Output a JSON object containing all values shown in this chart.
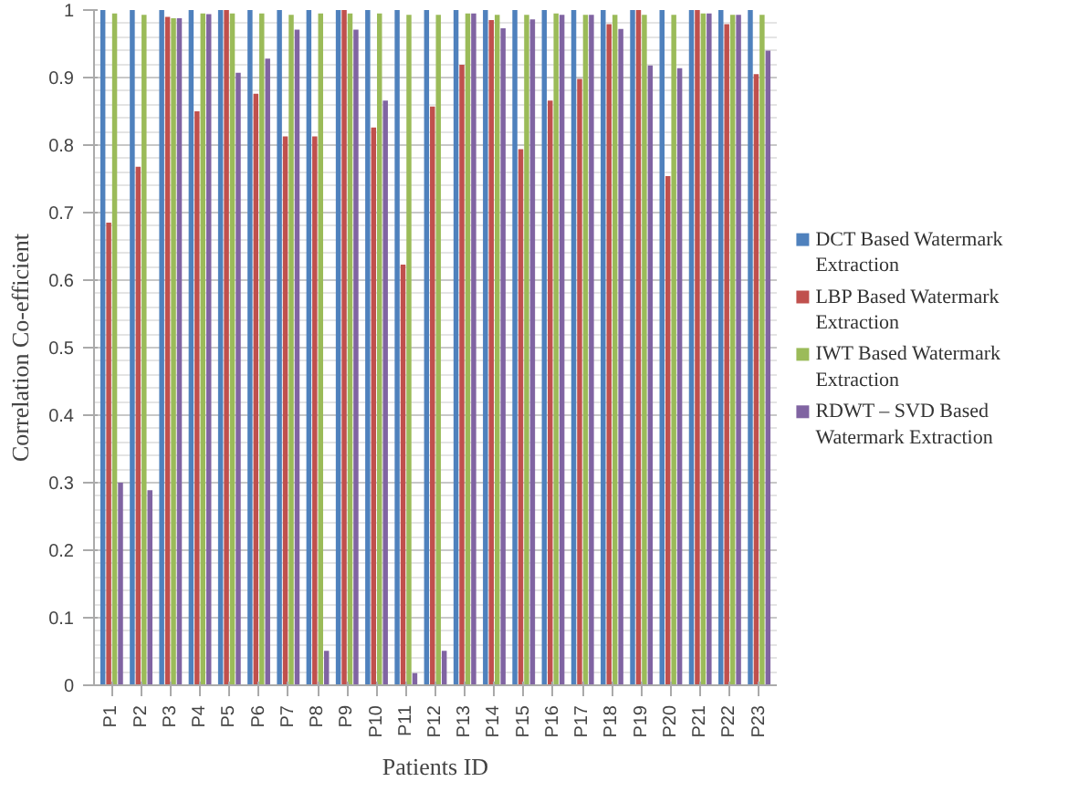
{
  "chart_data": {
    "type": "bar",
    "xlabel": "Patients ID",
    "ylabel": "Correlation Co-efficient",
    "categories": [
      "P1",
      "P2",
      "P3",
      "P4",
      "P5",
      "P6",
      "P7",
      "P8",
      "P9",
      "P10",
      "P11",
      "P12",
      "P13",
      "P14",
      "P15",
      "P16",
      "P17",
      "P18",
      "P19",
      "P20",
      "P21",
      "P22",
      "P23"
    ],
    "series": [
      {
        "name": "DCT Based Watermark Extraction",
        "color": "#4f81bd",
        "values": [
          1,
          1,
          1,
          1,
          1,
          1,
          1,
          1,
          1,
          1,
          1,
          1,
          1,
          1,
          1,
          1,
          1,
          1,
          1,
          1,
          1,
          1,
          1
        ]
      },
      {
        "name": "LBP Based Watermark Extraction",
        "color": "#c0504d",
        "values": [
          0.685,
          0.768,
          0.99,
          0.85,
          1,
          0.876,
          0.813,
          0.813,
          1,
          0.826,
          0.623,
          0.857,
          0.919,
          0.985,
          0.794,
          0.866,
          0.898,
          0.979,
          1,
          0.754,
          1,
          0.979,
          0.905
        ]
      },
      {
        "name": "IWT Based Watermark Extraction",
        "color": "#9bbb59",
        "values": [
          0.995,
          0.993,
          0.988,
          0.995,
          0.995,
          0.995,
          0.993,
          0.995,
          0.995,
          0.995,
          0.993,
          0.993,
          0.995,
          0.993,
          0.993,
          0.995,
          0.993,
          0.993,
          0.993,
          0.993,
          0.995,
          0.993,
          0.993
        ]
      },
      {
        "name": "RDWT – SVD Based Watermark Extraction",
        "color": "#8064a2",
        "values": [
          0.3,
          0.289,
          0.988,
          0.994,
          0.907,
          0.928,
          0.971,
          0.051,
          0.971,
          0.866,
          0.018,
          0.051,
          0.995,
          0.973,
          0.986,
          0.993,
          0.993,
          0.972,
          0.918,
          0.914,
          0.995,
          0.993,
          0.94
        ]
      }
    ],
    "ylim": [
      0,
      1
    ],
    "yticks": [
      0,
      0.1,
      0.2,
      0.3,
      0.4,
      0.5,
      0.6,
      0.7,
      0.8,
      0.9,
      1
    ],
    "grid": "y",
    "legend": "right"
  }
}
